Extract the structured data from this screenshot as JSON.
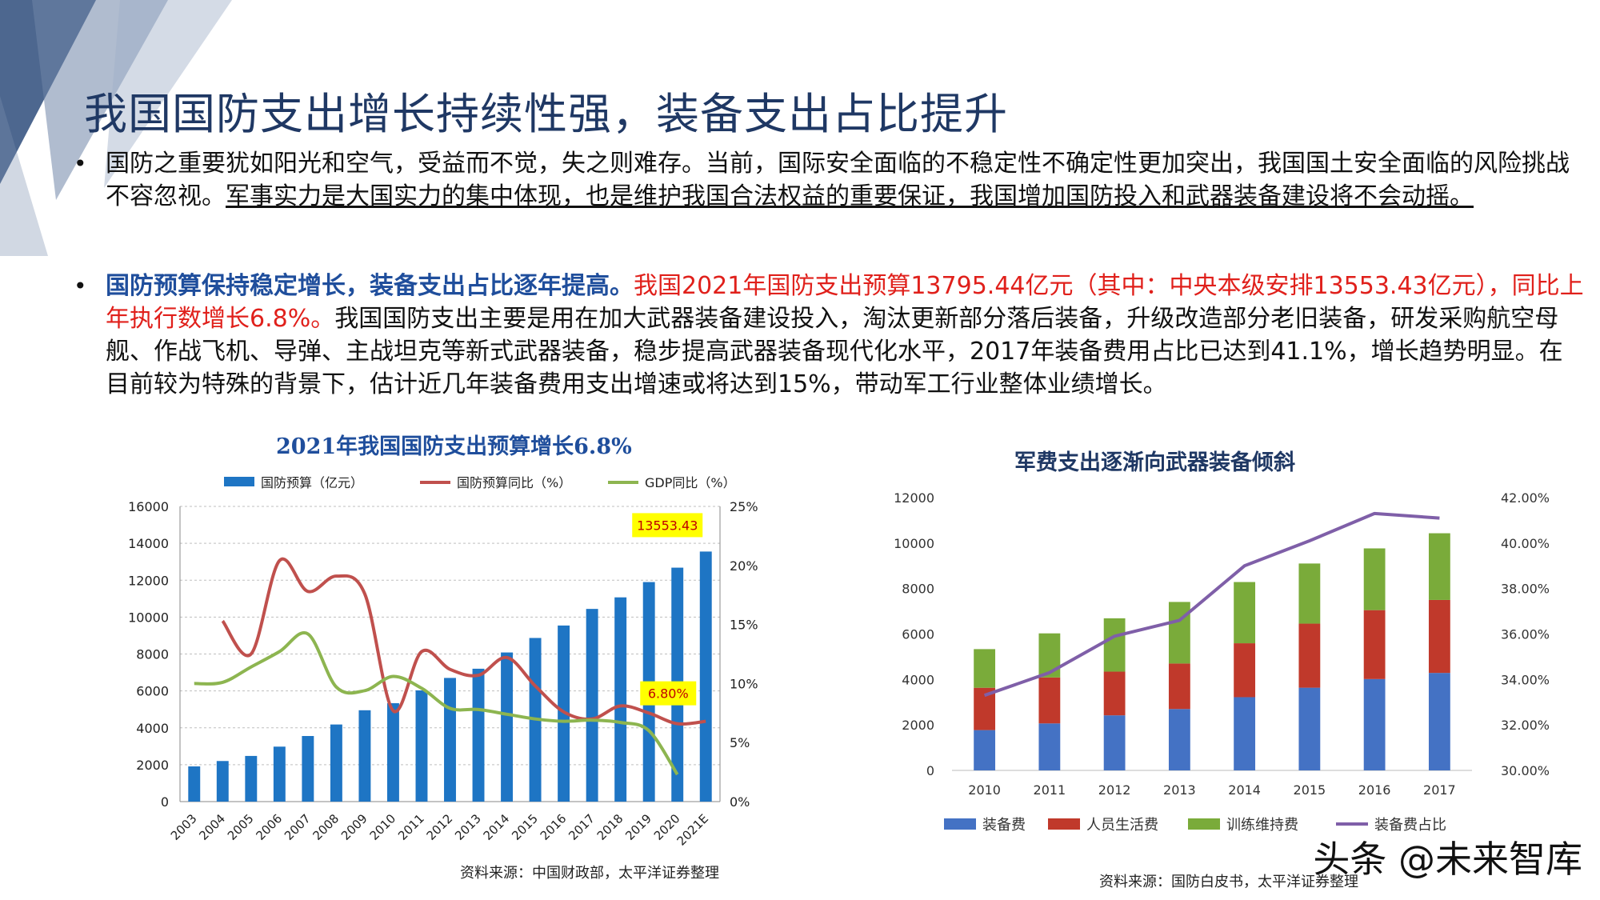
{
  "slide": {
    "title": "我国国防支出增长持续性强，装备支出占比提升",
    "bullet_glyph": "•",
    "p1_a": "国防之重要犹如阳光和空气，受益而不觉，失之则难存。当前，国际安全面临的不稳定性不确定性更加突出，我国国土安全面临的风险挑战不容忽视。",
    "p1_b": "军事实力是大国实力的集中体现，也是维护我国合法权益的重要保证，我国增加国防投入和武器装备建设将不会动摇。",
    "p2_a": "国防预算保持稳定增长，装备支出占比逐年提高。",
    "p2_b": "我国2021年国防支出预算13795.44亿元（其中：中央本级安排13553.43亿元），同比上年执行数增长6.8%。",
    "p2_c": "我国国防支出主要是用在加大武器装备建设投入，淘汰更新部分落后装备，升级改造部分老旧装备，研发采购航空母舰、作战飞机、导弹、主战坦克等新式武器装备，稳步提高武器装备现代化水平，2017年装备费用占比已达到41.1%，增长趋势明显。在目前较为特殊的背景下，估计近几年装备费用支出增速或将达到15%，带动军工行业整体业绩增长。",
    "watermark": "头条 @未来智库"
  },
  "colors": {
    "title": "#1f3864",
    "highlight_blue": "#1f4e9c",
    "highlight_red": "#e0201b",
    "bar_blue": "#1e75c4",
    "line_red": "#c0504d",
    "line_green": "#8db550",
    "equip": "#4472c4",
    "personnel": "#c0392b",
    "training": "#7aab3a",
    "share_line": "#7f5fa8",
    "callout": "#ffff00"
  },
  "chart_data": [
    {
      "type": "bar",
      "title": "2021年我国国防支出预算增长6.8%",
      "source": "资料来源：中国财政部，太平洋证券整理",
      "categories": [
        "2003",
        "2004",
        "2005",
        "2006",
        "2007",
        "2008",
        "2009",
        "2010",
        "2011",
        "2012",
        "2013",
        "2014",
        "2015",
        "2016",
        "2017",
        "2018",
        "2019",
        "2020",
        "2021E"
      ],
      "series": [
        {
          "name": "国防预算（亿元）",
          "kind": "bar",
          "axis": "left",
          "values": [
            1908,
            2200,
            2475,
            2979,
            3555,
            4179,
            4951,
            5333,
            6028,
            6703,
            7202,
            8083,
            8869,
            9544,
            10444,
            11070,
            11899,
            12680,
            13553.43
          ]
        },
        {
          "name": "国防预算同比（%）",
          "kind": "line",
          "axis": "right",
          "values": [
            null,
            15.3,
            12.5,
            20.4,
            17.8,
            19.1,
            17.6,
            7.7,
            12.7,
            11.2,
            10.7,
            12.2,
            9.8,
            7.6,
            7.0,
            8.1,
            7.5,
            6.6,
            6.8
          ]
        },
        {
          "name": "GDP同比（%）",
          "kind": "line",
          "axis": "right",
          "values": [
            10.0,
            10.1,
            11.4,
            12.7,
            14.2,
            9.7,
            9.4,
            10.6,
            9.6,
            7.9,
            7.8,
            7.4,
            7.0,
            6.8,
            6.9,
            6.7,
            6.0,
            2.3,
            null
          ]
        }
      ],
      "ylim_left": [
        0,
        16000
      ],
      "yticks_left": [
        "0",
        "2000",
        "4000",
        "6000",
        "8000",
        "10000",
        "12000",
        "14000",
        "16000"
      ],
      "ylim_right": [
        0,
        25
      ],
      "yticks_right": [
        "0%",
        "5%",
        "10%",
        "15%",
        "20%",
        "25%"
      ],
      "annotations": [
        "13553.43",
        "6.80%"
      ],
      "grid": true,
      "legend": "top"
    },
    {
      "type": "bar",
      "title": "军费支出逐渐向武器装备倾斜",
      "source": "资料来源：国防白皮书，太平洋证券整理",
      "categories": [
        "2010",
        "2011",
        "2012",
        "2013",
        "2014",
        "2015",
        "2016",
        "2017"
      ],
      "series": [
        {
          "name": "装备费",
          "kind": "stacked-bar",
          "axis": "left",
          "values": [
            1773,
            2067,
            2422,
            2700,
            3221,
            3638,
            4018,
            4288
          ]
        },
        {
          "name": "人员生活费",
          "kind": "stacked-bar",
          "axis": "left",
          "values": [
            1862,
            2021,
            1923,
            2002,
            2372,
            2818,
            3032,
            3210
          ]
        },
        {
          "name": "训练维持费",
          "kind": "stacked-bar",
          "axis": "left",
          "values": [
            1700,
            1940,
            2346,
            2708,
            2693,
            2645,
            2716,
            2934
          ]
        },
        {
          "name": "装备费占比",
          "kind": "line",
          "axis": "right",
          "values": [
            33.3,
            34.3,
            35.9,
            36.6,
            39.0,
            40.1,
            41.3,
            41.1
          ]
        }
      ],
      "ylim_left": [
        0,
        12000
      ],
      "yticks_left": [
        "0",
        "2000",
        "4000",
        "6000",
        "8000",
        "10000",
        "12000"
      ],
      "ylim_right": [
        30,
        42
      ],
      "yticks_right": [
        "30.00%",
        "32.00%",
        "34.00%",
        "36.00%",
        "38.00%",
        "40.00%",
        "42.00%"
      ],
      "grid": false,
      "legend": "bottom"
    }
  ]
}
